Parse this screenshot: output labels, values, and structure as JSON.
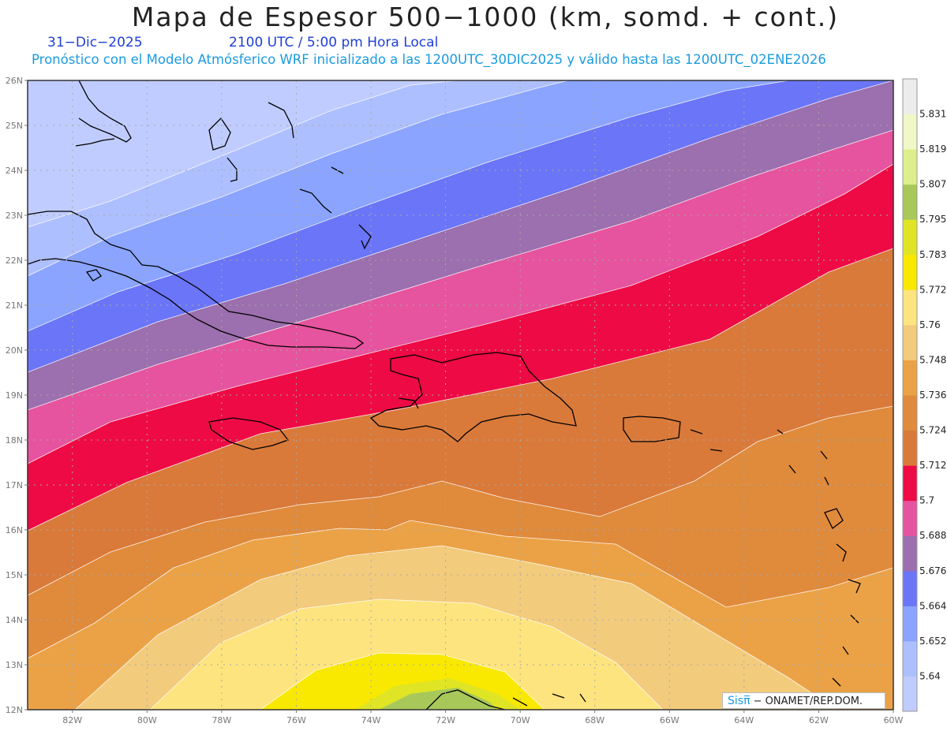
{
  "header": {
    "title": "Mapa de Espesor 500−1000 (km, somd. + cont.)",
    "date": "31−Dic−2025",
    "time": "2100 UTC / 5:00 pm Hora Local",
    "forecast": "Pronóstico con el Modelo Atmósferico WRF inicializado a las 1200UTC_30DIC2025 y válido hasta las  1200UTC_02ENE2026"
  },
  "map": {
    "lat_labels": [
      "26N",
      "25N",
      "24N",
      "23N",
      "22N",
      "21N",
      "20N",
      "19N",
      "18N",
      "17N",
      "16N",
      "15N",
      "14N",
      "13N",
      "12N"
    ],
    "lon_labels": [
      "82W",
      "80W",
      "78W",
      "76W",
      "74W",
      "72W",
      "70W",
      "68W",
      "66W",
      "64W",
      "62W",
      "60W"
    ],
    "lat_range": [
      12,
      26
    ],
    "lon_range": [
      -83.2,
      -60
    ],
    "grid": true
  },
  "colorbar": {
    "levels": [
      "5.64",
      "5.652",
      "5.664",
      "5.676",
      "5.688",
      "5.7",
      "5.712",
      "5.724",
      "5.736",
      "5.748",
      "5.76",
      "5.772",
      "5.783",
      "5.795",
      "5.807",
      "5.819",
      "5.831"
    ],
    "colors": [
      "#c0ccff",
      "#aebfff",
      "#8aa4ff",
      "#6b75f7",
      "#9c6fae",
      "#e6539e",
      "#ee0a44",
      "#d97a3a",
      "#e08a3c",
      "#eba246",
      "#f2cb7c",
      "#fde47e",
      "#f9e800",
      "#dfe525",
      "#a8c85a",
      "#dcef8a",
      "#f1f7c6",
      "#ececec"
    ]
  },
  "credit": {
    "logo": "Sisπ̅",
    "text": "− ONAMET/REP.DOM."
  }
}
